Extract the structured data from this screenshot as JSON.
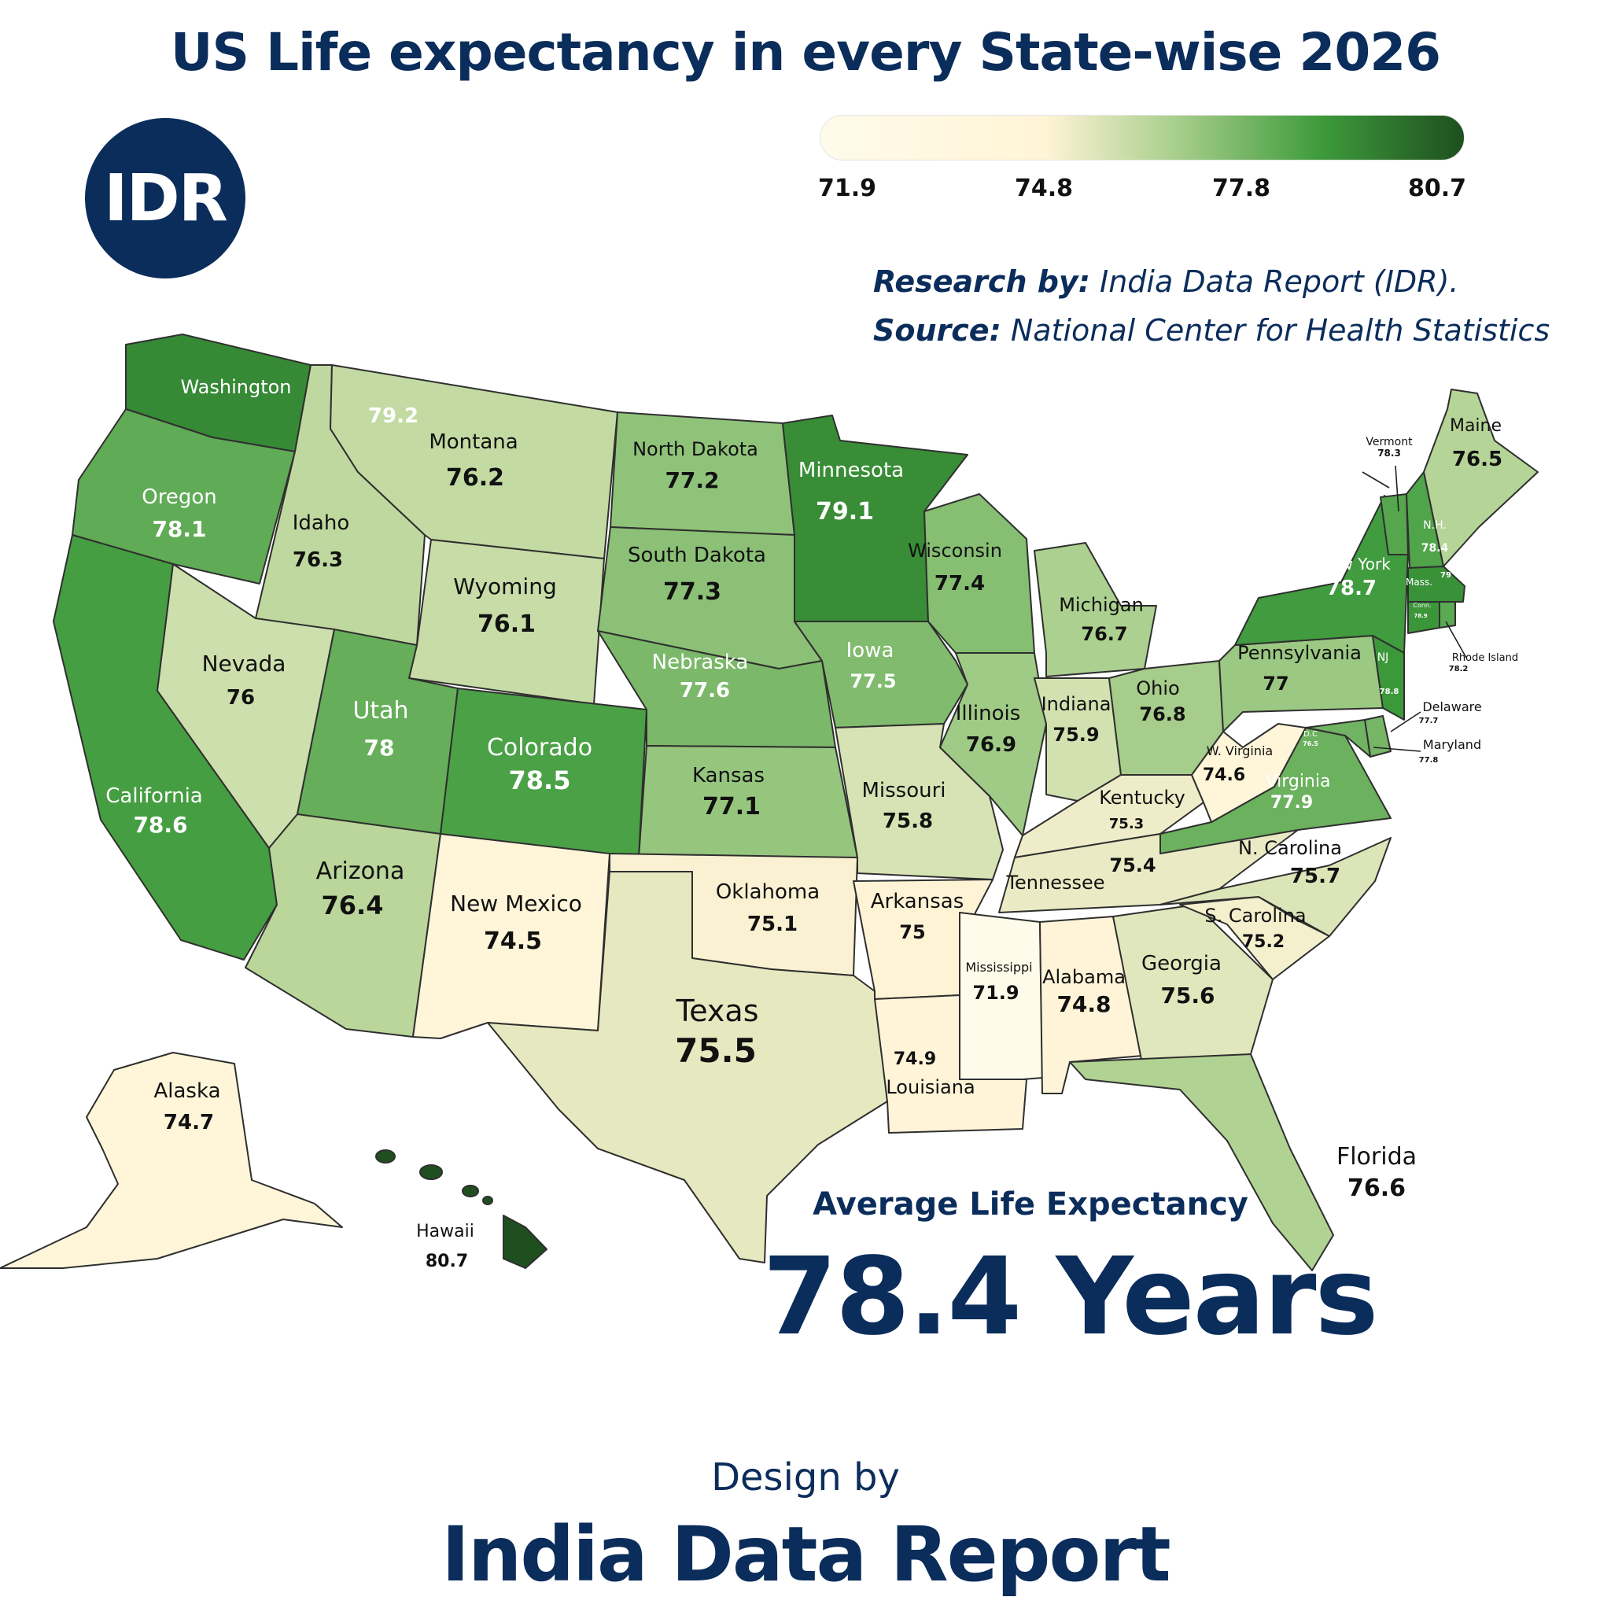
{
  "title": "US Life expectancy in every State-wise 2026",
  "logo": {
    "text": "IDR"
  },
  "legend": {
    "ticks": [
      "71.9",
      "74.8",
      "77.8",
      "80.7"
    ],
    "min": 71.9,
    "max": 80.7,
    "colors": [
      "#fffbea",
      "#fff4d6",
      "#a9cf8d",
      "#3d9a3b",
      "#1f4f1f"
    ]
  },
  "credits": {
    "research_label": "Research by:",
    "research_value": "India Data Report (IDR).",
    "source_label": "Source:",
    "source_value": "National Center for Health Statistics"
  },
  "average": {
    "label": "Average Life Expectancy",
    "value": "78.4 Years"
  },
  "footer": {
    "design_by": "Design by",
    "name": "India Data Report"
  },
  "states": [
    {
      "name": "Washington",
      "value": "79.2"
    },
    {
      "name": "Oregon",
      "value": "78.1"
    },
    {
      "name": "California",
      "value": "78.6"
    },
    {
      "name": "Idaho",
      "value": "76.3"
    },
    {
      "name": "Nevada",
      "value": "76"
    },
    {
      "name": "Montana",
      "value": "76.2"
    },
    {
      "name": "Wyoming",
      "value": "76.1"
    },
    {
      "name": "Utah",
      "value": "78"
    },
    {
      "name": "Arizona",
      "value": "76.4"
    },
    {
      "name": "Colorado",
      "value": "78.5"
    },
    {
      "name": "New Mexico",
      "value": "74.5"
    },
    {
      "name": "North Dakota",
      "value": "77.2"
    },
    {
      "name": "South Dakota",
      "value": "77.3"
    },
    {
      "name": "Nebraska",
      "value": "77.6"
    },
    {
      "name": "Kansas",
      "value": "77.1"
    },
    {
      "name": "Oklahoma",
      "value": "75.1"
    },
    {
      "name": "Texas",
      "value": "75.5"
    },
    {
      "name": "Minnesota",
      "value": "79.1"
    },
    {
      "name": "Iowa",
      "value": "77.5"
    },
    {
      "name": "Missouri",
      "value": "75.8"
    },
    {
      "name": "Arkansas",
      "value": "75"
    },
    {
      "name": "Louisiana",
      "value": "74.9"
    },
    {
      "name": "Wisconsin",
      "value": "77.4"
    },
    {
      "name": "Illinois",
      "value": "76.9"
    },
    {
      "name": "Michigan",
      "value": "76.7"
    },
    {
      "name": "Indiana",
      "value": "75.9"
    },
    {
      "name": "Ohio",
      "value": "76.8"
    },
    {
      "name": "Kentucky",
      "value": "75.3"
    },
    {
      "name": "Tennessee",
      "value": "75.4"
    },
    {
      "name": "Mississippi",
      "value": "71.9"
    },
    {
      "name": "Alabama",
      "value": "74.8"
    },
    {
      "name": "Georgia",
      "value": "75.6"
    },
    {
      "name": "Florida",
      "value": "76.6"
    },
    {
      "name": "S. Carolina",
      "value": "75.2"
    },
    {
      "name": "N. Carolina",
      "value": "75.7"
    },
    {
      "name": "Virginia",
      "value": "77.9"
    },
    {
      "name": "W. Virginia",
      "value": "74.6"
    },
    {
      "name": "Pennsylvania",
      "value": "77"
    },
    {
      "name": "New York",
      "value": "78.7"
    },
    {
      "name": "NJ",
      "value": "78.8"
    },
    {
      "name": "D.C",
      "value": "76.5"
    },
    {
      "name": "Delaware",
      "value": "77.7"
    },
    {
      "name": "Maryland",
      "value": "77.8"
    },
    {
      "name": "Vermont",
      "value": "78.3"
    },
    {
      "name": "N.H.",
      "value": "78.4"
    },
    {
      "name": "Maine",
      "value": "76.5"
    },
    {
      "name": "Mass.",
      "value": "79"
    },
    {
      "name": "Conn.",
      "value": "78.9"
    },
    {
      "name": "Rhode Island",
      "value": "78.2"
    },
    {
      "name": "Alaska",
      "value": "74.7"
    },
    {
      "name": "Hawaii",
      "value": "80.7"
    }
  ]
}
